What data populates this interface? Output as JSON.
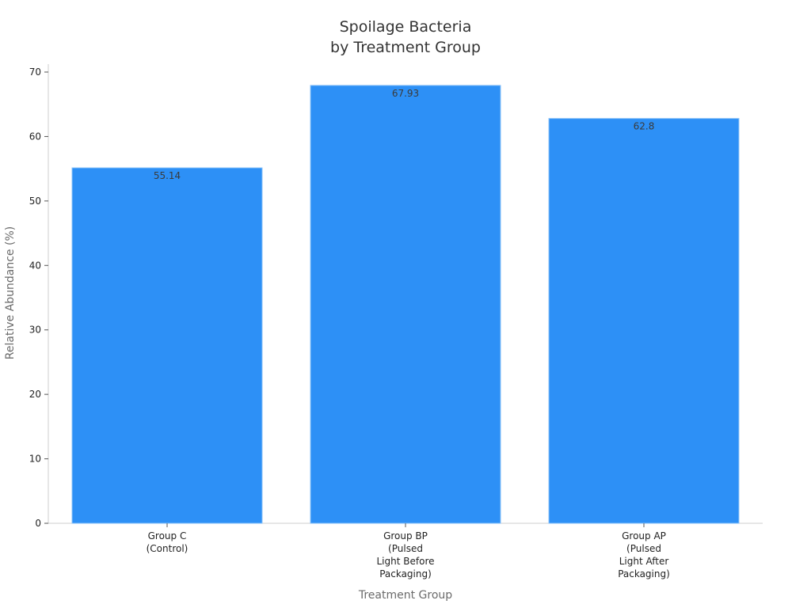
{
  "chart_data": {
    "type": "bar",
    "title_lines": [
      "Spoilage Bacteria",
      "by Treatment Group"
    ],
    "xlabel": "Treatment Group",
    "ylabel": "Relative Abundance (%)",
    "ylim": [
      0,
      70
    ],
    "yticks": [
      0,
      10,
      20,
      30,
      40,
      50,
      60,
      70
    ],
    "categories": [
      [
        "Group C",
        "(Control)"
      ],
      [
        "Group BP",
        "(Pulsed",
        "Light Before",
        "Packaging)"
      ],
      [
        "Group AP",
        "(Pulsed",
        "Light After",
        "Packaging)"
      ]
    ],
    "values": [
      55.14,
      67.93,
      62.8
    ],
    "data_labels": [
      "55.14",
      "67.93",
      "62.8"
    ],
    "bar_color": "#2d90f6",
    "grid": false,
    "legend": "none"
  }
}
